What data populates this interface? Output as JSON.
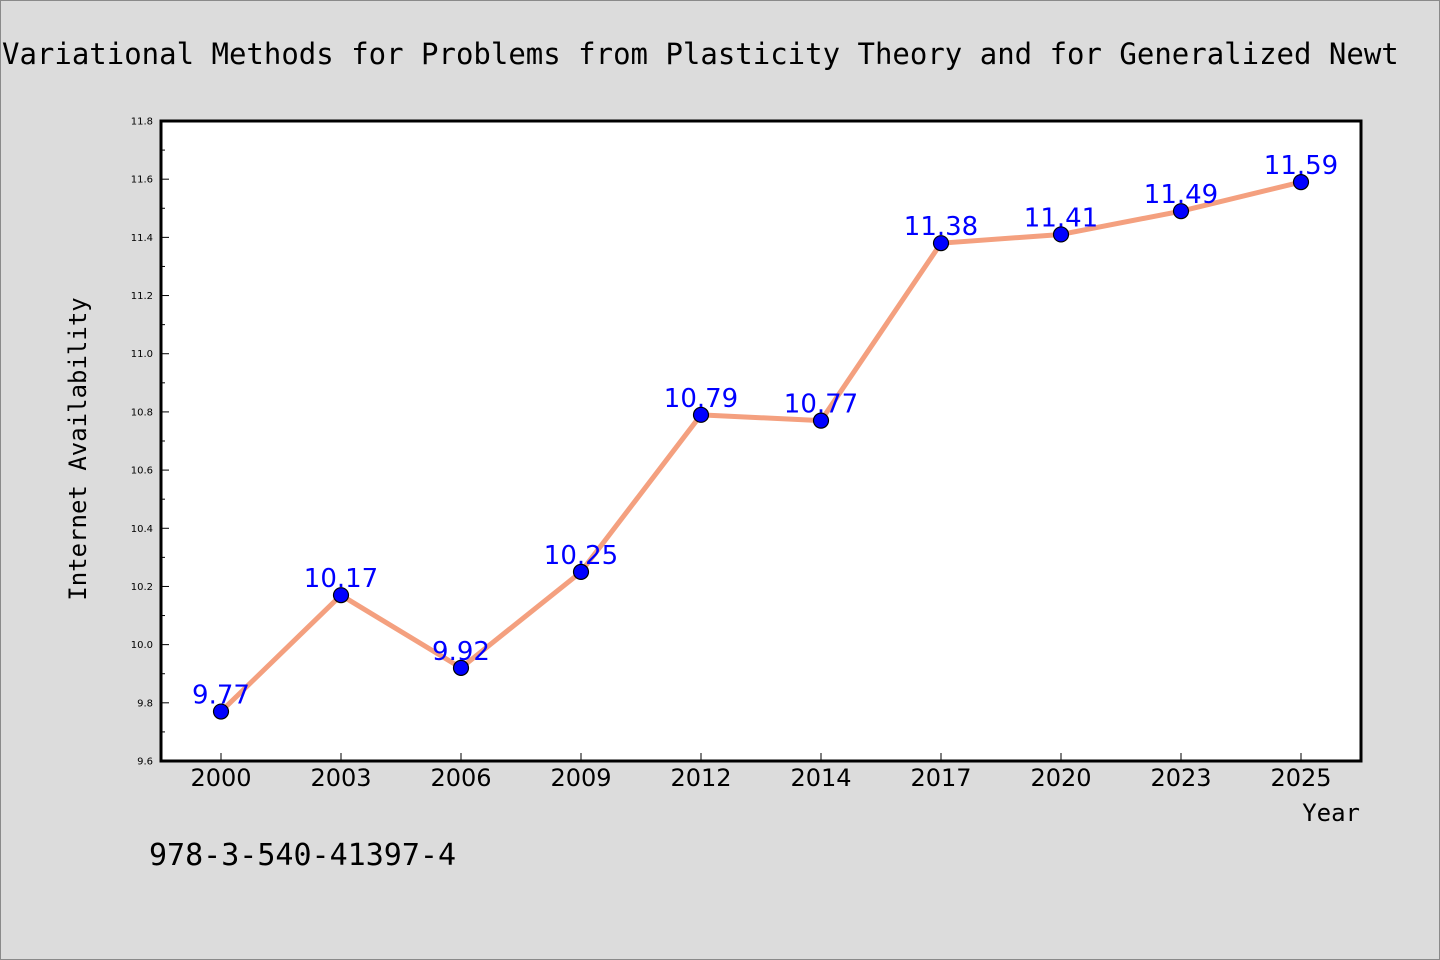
{
  "chart_data": {
    "type": "line",
    "title": "Variational Methods for Problems from Plasticity Theory and for Generalized Newt",
    "xlabel": "Year",
    "ylabel": "Internet Availability",
    "categories": [
      "2000",
      "2003",
      "2006",
      "2009",
      "2012",
      "2014",
      "2017",
      "2020",
      "2023",
      "2025"
    ],
    "values": [
      9.77,
      10.17,
      9.92,
      10.25,
      10.79,
      10.77,
      11.38,
      11.41,
      11.49,
      11.59
    ],
    "data_labels": [
      "9.77",
      "10.17",
      "9.92",
      "10.25",
      "10.79",
      "10.77",
      "11.38",
      "11.41",
      "11.49",
      "11.59"
    ],
    "ylim": [
      9.6,
      11.8
    ],
    "yticks": [
      "9.6",
      "9.8",
      "10.0",
      "10.2",
      "10.4",
      "10.6",
      "10.8",
      "11.0",
      "11.2",
      "11.4",
      "11.6",
      "11.8"
    ],
    "grid": false,
    "legend": "none",
    "colors": {
      "line": "#f4a07f",
      "marker": "#0000ff",
      "marker_edge": "#000000",
      "data_label": "#0000ff",
      "background": "#dcdcdc",
      "plot_background": "#ffffff"
    }
  },
  "footer": {
    "isbn": "978-3-540-41397-4"
  }
}
